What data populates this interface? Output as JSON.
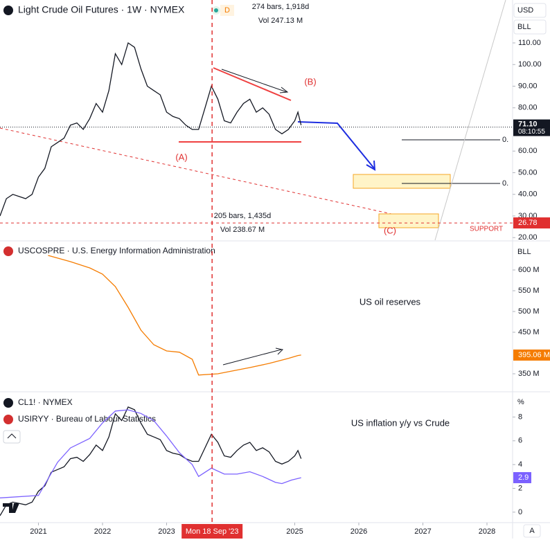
{
  "chart_data": [
    {
      "type": "line",
      "title": "Light Crude Oil Futures · 1W · NYMEX",
      "badge": "D",
      "currency": "USD",
      "unit": "BLL",
      "color": "#131722",
      "x": [
        2020.4,
        2020.5,
        2020.6,
        2020.7,
        2020.8,
        2020.9,
        2021.0,
        2021.1,
        2021.2,
        2021.3,
        2021.4,
        2021.5,
        2021.6,
        2021.7,
        2021.8,
        2021.9,
        2022.0,
        2022.1,
        2022.2,
        2022.3,
        2022.4,
        2022.5,
        2022.6,
        2022.7,
        2022.8,
        2022.9,
        2023.0,
        2023.1,
        2023.2,
        2023.3,
        2023.4,
        2023.5,
        2023.6,
        2023.7,
        2023.8,
        2023.9,
        2024.0,
        2024.1,
        2024.2,
        2024.3,
        2024.4,
        2024.5,
        2024.6,
        2024.7,
        2024.8,
        2024.9,
        2025.0,
        2025.05,
        2025.1
      ],
      "values": [
        30,
        38,
        40,
        39,
        38,
        40,
        48,
        52,
        62,
        64,
        66,
        72,
        73,
        70,
        75,
        82,
        78,
        88,
        105,
        100,
        110,
        108,
        98,
        90,
        88,
        86,
        78,
        76,
        75,
        72,
        70,
        70,
        80,
        90,
        84,
        74,
        73,
        78,
        82,
        84,
        78,
        80,
        77,
        70,
        68,
        70,
        74,
        78,
        72
      ],
      "xlim": [
        2020.4,
        2028.4
      ],
      "ylim": [
        18.8,
        129.84
      ],
      "yticks": [
        {
          "value": 20,
          "label": "20.00"
        },
        {
          "value": 30,
          "label": "30.00"
        },
        {
          "value": 40,
          "label": "40.00"
        },
        {
          "value": 50,
          "label": "50.00"
        },
        {
          "value": 60,
          "label": "60.00"
        },
        {
          "value": 80,
          "label": "80.00"
        },
        {
          "value": 90,
          "label": "90.00"
        },
        {
          "value": 100,
          "label": "100.00"
        },
        {
          "value": 110,
          "label": "110.00"
        }
      ],
      "last_price": {
        "value": 71.1,
        "label": "71.10"
      },
      "countdown": "08:10:55",
      "support_level": 26.78,
      "annotations": {
        "wave_a": "(A)",
        "wave_b": "(B)",
        "wave_c": "(C)",
        "support": "SUPPORT",
        "fib_1": "0.",
        "fib_2": "0.",
        "measure_1_bars": "274 bars, 1,918d",
        "measure_1_vol": "Vol 247.13 M",
        "measure_2_bars": "205 bars, 1,435d",
        "measure_2_vol": "Vol 238.67 M"
      }
    },
    {
      "type": "line",
      "title": "USCOSPRE · U.S. Energy Information Administration",
      "unit": "BLL",
      "color": "#f57c00",
      "x": [
        2021.15,
        2021.5,
        2021.8,
        2022.0,
        2022.2,
        2022.4,
        2022.6,
        2022.8,
        2023.0,
        2023.2,
        2023.4,
        2023.5,
        2023.8,
        2024.0,
        2024.3,
        2024.6,
        2024.9,
        2025.05,
        2025.1
      ],
      "values": [
        635,
        620,
        605,
        590,
        560,
        510,
        455,
        420,
        405,
        402,
        385,
        347,
        350,
        356,
        365,
        375,
        387,
        394,
        395.06
      ],
      "xlim": [
        2020.4,
        2028.4
      ],
      "ylim": [
        308.3,
        670
      ],
      "yticks": [
        {
          "value": 350,
          "label": "350 M"
        },
        {
          "value": 450,
          "label": "450 M"
        },
        {
          "value": 500,
          "label": "500 M"
        },
        {
          "value": 550,
          "label": "550 M"
        },
        {
          "value": 600,
          "label": "600 M"
        }
      ],
      "last_value": {
        "value": 395.06,
        "label": "395.06 M"
      },
      "annotation": "US oil reserves"
    },
    {
      "type": "line",
      "title": "CL1! · NYMEX",
      "overlay_color": "#131722",
      "unit": "%",
      "series": [
        {
          "name": "USIRYY · Bureau of Labour Statistics",
          "color": "#7b61ff",
          "x": [
            2020.4,
            2021.0,
            2021.3,
            2021.5,
            2021.8,
            2022.0,
            2022.2,
            2022.4,
            2022.6,
            2022.8,
            2023.0,
            2023.2,
            2023.4,
            2023.5,
            2023.7,
            2023.9,
            2024.1,
            2024.3,
            2024.5,
            2024.7,
            2024.8,
            2024.95,
            2025.1
          ],
          "values": [
            1.2,
            1.4,
            4.2,
            5.4,
            6.2,
            7.5,
            8.5,
            8.6,
            8.3,
            7.7,
            6.4,
            5.0,
            4.0,
            3.0,
            3.7,
            3.2,
            3.2,
            3.4,
            3.0,
            2.5,
            2.4,
            2.7,
            2.9
          ]
        }
      ],
      "xlim": [
        2020.4,
        2028.4
      ],
      "ylim": [
        -0.88,
        10.12
      ],
      "yticks": [
        0,
        2,
        4,
        6,
        8
      ],
      "xticks": [
        2021,
        2022,
        2023,
        2025,
        2026,
        2027,
        2028
      ],
      "crosshair": {
        "value": 2023.71,
        "label": "Mon 18 Sep '23"
      },
      "annotation": "US inflation y/y vs Crude",
      "auto_button": "A"
    }
  ]
}
